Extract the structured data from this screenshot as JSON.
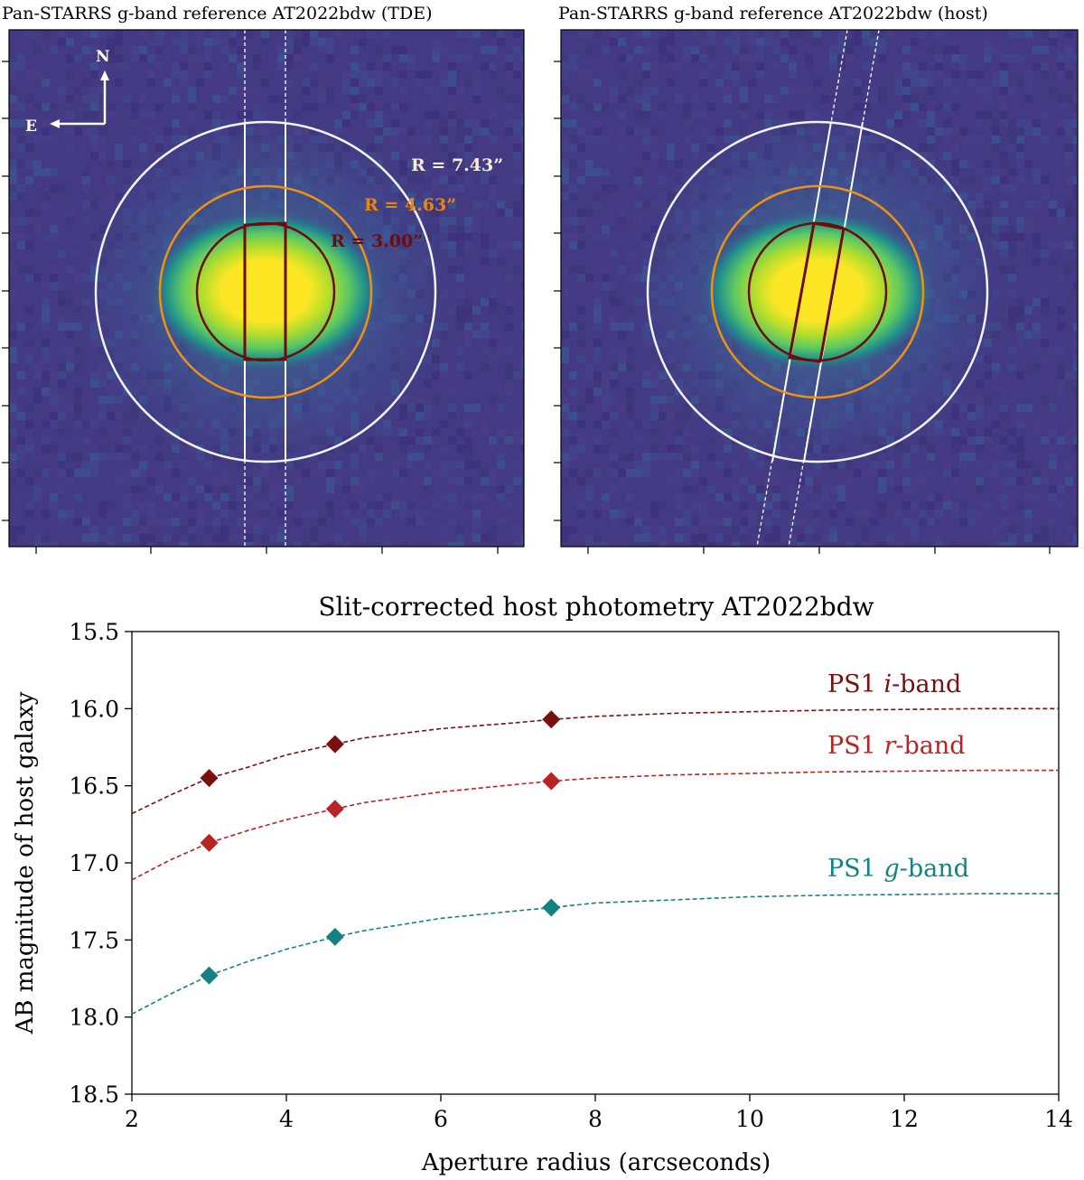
{
  "images": {
    "left": {
      "title": "Pan-STARRS g-band reference AT2022bdw (TDE)",
      "compass_n": "N",
      "compass_e": "E",
      "aperture_labels": [
        {
          "text": "R = 7.43”",
          "color": "#f3ecd6"
        },
        {
          "text": "R = 4.63”",
          "color": "#e8860f"
        },
        {
          "text": "R = 3.00”",
          "color": "#6e0b0b"
        }
      ]
    },
    "right": {
      "title": "Pan-STARRS g-band reference AT2022bdw (host)"
    }
  },
  "colors": {
    "aperture_7_43": "#f3f3f3",
    "aperture_4_63": "#f0920f",
    "aperture_3_00": "#6e0b0b",
    "slit": "#ffffff",
    "viridis_low": "#3e1f6e",
    "viridis_high": "#fde725"
  },
  "chart_data": {
    "type": "line",
    "title": "Slit-corrected host photometry AT2022bdw",
    "xlabel": "Aperture radius (arcseconds)",
    "ylabel": "AB magnitude of host galaxy",
    "xlim": [
      2,
      14
    ],
    "ylim": [
      18.5,
      15.5
    ],
    "y_inverted": true,
    "xticks": [
      "2",
      "4",
      "6",
      "8",
      "10",
      "12",
      "14"
    ],
    "yticks": [
      "15.5",
      "16.0",
      "16.5",
      "17.0",
      "17.5",
      "18.0",
      "18.5"
    ],
    "grid": false,
    "series": [
      {
        "name": "PS1 i-band",
        "label_prefix": "PS1 ",
        "label_italic": "i",
        "label_suffix": "-band",
        "color": "#7a0f0f",
        "points": [
          [
            3.0,
            16.45
          ],
          [
            4.63,
            16.23
          ],
          [
            7.43,
            16.07
          ]
        ],
        "curve": [
          [
            2,
            16.68
          ],
          [
            2.5,
            16.56
          ],
          [
            3,
            16.45
          ],
          [
            3.5,
            16.38
          ],
          [
            4,
            16.3
          ],
          [
            4.63,
            16.23
          ],
          [
            5,
            16.19
          ],
          [
            6,
            16.13
          ],
          [
            7,
            16.09
          ],
          [
            7.43,
            16.07
          ],
          [
            8,
            16.05
          ],
          [
            9,
            16.03
          ],
          [
            10,
            16.02
          ],
          [
            11,
            16.01
          ],
          [
            12,
            16.005
          ],
          [
            13,
            16.0
          ],
          [
            14,
            16.0
          ]
        ]
      },
      {
        "name": "PS1 r-band",
        "label_prefix": "PS1 ",
        "label_italic": "r",
        "label_suffix": "-band",
        "color": "#b82323",
        "points": [
          [
            3.0,
            16.87
          ],
          [
            4.63,
            16.65
          ],
          [
            7.43,
            16.47
          ]
        ],
        "curve": [
          [
            2,
            17.11
          ],
          [
            2.5,
            16.98
          ],
          [
            3,
            16.87
          ],
          [
            3.5,
            16.79
          ],
          [
            4,
            16.72
          ],
          [
            4.63,
            16.65
          ],
          [
            5,
            16.61
          ],
          [
            6,
            16.54
          ],
          [
            7,
            16.49
          ],
          [
            7.43,
            16.47
          ],
          [
            8,
            16.45
          ],
          [
            9,
            16.43
          ],
          [
            10,
            16.42
          ],
          [
            11,
            16.41
          ],
          [
            12,
            16.405
          ],
          [
            13,
            16.4
          ],
          [
            14,
            16.4
          ]
        ]
      },
      {
        "name": "PS1 g-band",
        "label_prefix": "PS1 ",
        "label_italic": "g",
        "label_suffix": "-band",
        "color": "#138282",
        "points": [
          [
            3.0,
            17.73
          ],
          [
            4.63,
            17.48
          ],
          [
            7.43,
            17.29
          ]
        ],
        "curve": [
          [
            2,
            17.98
          ],
          [
            2.5,
            17.85
          ],
          [
            3,
            17.73
          ],
          [
            3.5,
            17.64
          ],
          [
            4,
            17.56
          ],
          [
            4.63,
            17.48
          ],
          [
            5,
            17.44
          ],
          [
            6,
            17.36
          ],
          [
            7,
            17.31
          ],
          [
            7.43,
            17.29
          ],
          [
            8,
            17.26
          ],
          [
            9,
            17.24
          ],
          [
            10,
            17.22
          ],
          [
            11,
            17.21
          ],
          [
            12,
            17.205
          ],
          [
            13,
            17.2
          ],
          [
            14,
            17.2
          ]
        ]
      }
    ]
  }
}
